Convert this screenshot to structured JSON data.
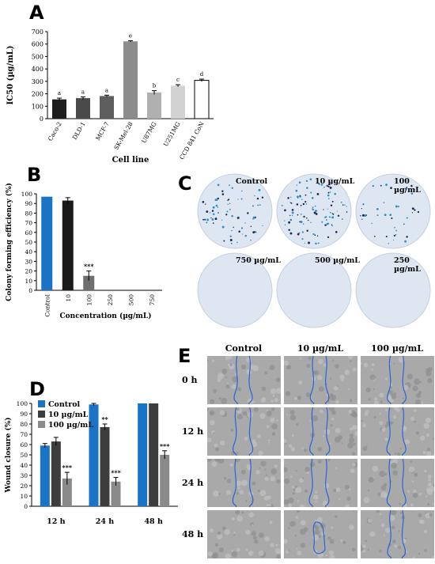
{
  "panels": {
    "A": "A",
    "B": "B",
    "C": "C",
    "D": "D",
    "E": "E"
  },
  "chart_data": [
    {
      "id": "A",
      "type": "bar",
      "xlabel": "Cell line",
      "ylabel": "IC50 (µg/mL)",
      "ylim": [
        0,
        700
      ],
      "yticks": [
        "0",
        "100",
        "200",
        "300",
        "400",
        "500",
        "600",
        "700"
      ],
      "categories": [
        "Caco-2",
        "DLD-1",
        "MCF-7",
        "SK-Mel-28",
        "U87MG",
        "U251MG",
        "CCD 841 CoN"
      ],
      "values": [
        155,
        165,
        182,
        622,
        210,
        265,
        308
      ],
      "errors": [
        10,
        10,
        7,
        5,
        15,
        8,
        10
      ],
      "letters": [
        "a",
        "a",
        "a",
        "e",
        "b",
        "c",
        "d"
      ],
      "colors": [
        "#1e1e1e",
        "#4a4a4a",
        "#5e5e5e",
        "#8c8c8c",
        "#b0b0b0",
        "#d2d2d2",
        "#ffffff"
      ]
    },
    {
      "id": "B",
      "type": "bar",
      "xlabel": "Concentration (µg/mL)",
      "ylabel": "Colony forming efficiency (%)",
      "ylim": [
        0,
        100
      ],
      "yticks": [
        "0",
        "10",
        "20",
        "30",
        "40",
        "50",
        "60",
        "70",
        "80",
        "90",
        "100"
      ],
      "categories": [
        "Control",
        "10",
        "100",
        "250",
        "500",
        "750"
      ],
      "values": [
        97,
        93,
        15,
        0,
        0,
        0
      ],
      "errors": [
        0,
        3,
        5,
        0,
        0,
        0
      ],
      "sig": [
        "",
        "",
        "***",
        "",
        "",
        ""
      ],
      "colors": [
        "#1a73c4",
        "#1a1a1a",
        "#6e6e6e",
        "#6e6e6e",
        "#6e6e6e",
        "#6e6e6e"
      ]
    },
    {
      "id": "D",
      "type": "bar",
      "ylabel": "Wound closure (%)",
      "ylim": [
        0,
        100
      ],
      "yticks": [
        "0",
        "10",
        "20",
        "30",
        "40",
        "50",
        "60",
        "70",
        "80",
        "90",
        "100"
      ],
      "categories": [
        "12 h",
        "24 h",
        "48 h"
      ],
      "series": [
        {
          "name": "Control",
          "color": "#1a73c4",
          "values": [
            59,
            99,
            100
          ],
          "errors": [
            2,
            1,
            0
          ],
          "sig": [
            "",
            "",
            ""
          ]
        },
        {
          "name": "10 µg/mL",
          "color": "#3d3d3d",
          "values": [
            63,
            77,
            100
          ],
          "errors": [
            4,
            3,
            0
          ],
          "sig": [
            "",
            "**",
            ""
          ]
        },
        {
          "name": "100 µg/mL",
          "color": "#8a8a8a",
          "values": [
            27,
            24,
            50
          ],
          "errors": [
            6,
            4,
            4
          ],
          "sig": [
            "***",
            "***",
            "***"
          ]
        }
      ],
      "legend": "top-left"
    }
  ],
  "colony_assay": {
    "dishes": [
      {
        "label": "Control",
        "density": 70
      },
      {
        "label": "10 µg/mL",
        "density": 110
      },
      {
        "label": "100 µg/mL",
        "density": 40
      },
      {
        "label": "750 µg/mL",
        "density": 0
      },
      {
        "label": "500 µg/mL",
        "density": 0
      },
      {
        "label": "250 µg/mL",
        "density": 0
      }
    ]
  },
  "wound_images": {
    "columns": [
      "Control",
      "10 µg/mL",
      "100 µg/mL"
    ],
    "rows": [
      "0 h",
      "12 h",
      "24 h",
      "48 h"
    ]
  }
}
